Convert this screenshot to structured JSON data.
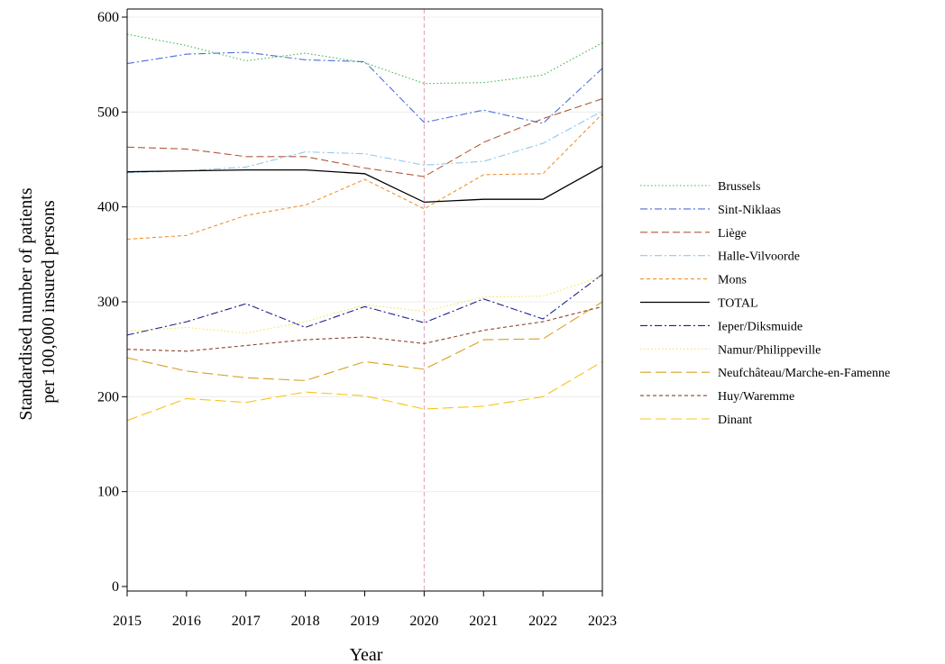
{
  "chart_data": {
    "type": "line",
    "title": "",
    "xlabel": "Year",
    "ylabel_lines": [
      "Standardised number of patients",
      "per 100,000 insured persons"
    ],
    "x": [
      2015,
      2016,
      2017,
      2018,
      2019,
      2020,
      2021,
      2022,
      2023
    ],
    "xlim": [
      2015,
      2023
    ],
    "ylim": [
      0,
      610
    ],
    "yticks": [
      0,
      100,
      200,
      300,
      400,
      500,
      600
    ],
    "grid": true,
    "legend_position": "right",
    "reference_line": {
      "x": 2020,
      "color": "#e0a0b0",
      "dash": "dashed"
    },
    "series": [
      {
        "name": "Brussels",
        "color": "#3cb84a",
        "dash": "dotted",
        "values": [
          582,
          570,
          554,
          562,
          552,
          530,
          531,
          539,
          573
        ]
      },
      {
        "name": "Sint-Niklaas",
        "color": "#4a6fd8",
        "dash": "dashdot",
        "values": [
          551,
          561,
          563,
          555,
          553,
          489,
          502,
          488,
          546
        ]
      },
      {
        "name": "Liège",
        "color": "#b05a3a",
        "dash": "dashed",
        "values": [
          463,
          461,
          453,
          453,
          441,
          432,
          468,
          493,
          514
        ]
      },
      {
        "name": "Halle-Vilvoorde",
        "color": "#8fc8f0",
        "dash": "dashdot",
        "values": [
          436,
          438,
          442,
          458,
          456,
          444,
          448,
          467,
          501
        ]
      },
      {
        "name": "Mons",
        "color": "#f0922e",
        "dash": "shortdash",
        "values": [
          366,
          370,
          391,
          402,
          429,
          398,
          434,
          435,
          498
        ]
      },
      {
        "name": "TOTAL",
        "color": "#000000",
        "dash": "solid",
        "values": [
          437,
          438,
          439,
          439,
          435,
          405,
          408,
          408,
          443
        ]
      },
      {
        "name": "Ieper/Diksmuide",
        "color": "#1e1e8c",
        "dash": "dashdot",
        "values": [
          265,
          279,
          298,
          273,
          295,
          278,
          303,
          282,
          329
        ]
      },
      {
        "name": "Namur/Philippeville",
        "color": "#f5e15a",
        "dash": "dotted",
        "values": [
          269,
          273,
          267,
          279,
          297,
          290,
          305,
          306,
          327
        ]
      },
      {
        "name": "Neufchâteau/Marche-en-Famenne",
        "color": "#d8a020",
        "dash": "longdash",
        "values": [
          241,
          227,
          220,
          217,
          237,
          229,
          260,
          261,
          300
        ]
      },
      {
        "name": "Huy/Waremme",
        "color": "#8a4428",
        "dash": "shortdash",
        "values": [
          250,
          248,
          254,
          260,
          263,
          256,
          270,
          279,
          295
        ]
      },
      {
        "name": "Dinant",
        "color": "#f5c518",
        "dash": "longdash",
        "values": [
          175,
          198,
          194,
          205,
          201,
          187,
          190,
          200,
          237
        ]
      }
    ]
  }
}
